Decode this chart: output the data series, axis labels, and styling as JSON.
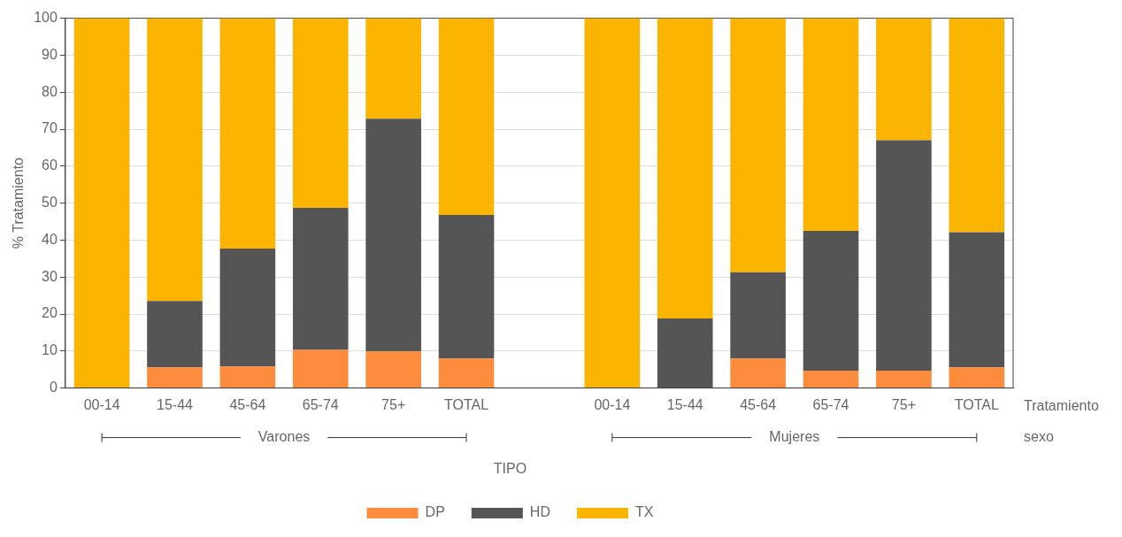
{
  "chart_data": {
    "type": "bar",
    "stacked": true,
    "ylabel": "% Tratamiento",
    "xlabel": "Tratamiento",
    "legend_title": "TIPO",
    "legend": "bottom",
    "grid": "y",
    "categories": [
      "00-14",
      "15-44",
      "45-64",
      "65-74",
      "75+",
      "TOTAL",
      null,
      "00-14",
      "15-44",
      "45-64",
      "65-74",
      "75+",
      "TOTAL"
    ],
    "annotations": [
      "Varones",
      "Mujeres",
      "sexo"
    ],
    "ylim": [
      0,
      100
    ],
    "yticks": [
      0,
      10,
      20,
      30,
      40,
      50,
      60,
      70,
      80,
      90,
      100
    ],
    "series": [
      {
        "name": "DP",
        "color": "#fd8c3c",
        "values": [
          0,
          5.6,
          5.8,
          10.3,
          9.9,
          8.0,
          null,
          0,
          0,
          8.0,
          4.7,
          4.7,
          5.6
        ]
      },
      {
        "name": "HD",
        "color": "#555555",
        "values": [
          0,
          17.9,
          31.9,
          38.4,
          62.9,
          38.8,
          null,
          0,
          18.8,
          23.3,
          37.8,
          62.3,
          36.5
        ]
      },
      {
        "name": "TX",
        "color": "#fbb400",
        "values": [
          100,
          76.5,
          62.3,
          51.3,
          27.2,
          53.2,
          null,
          100,
          81.2,
          68.7,
          57.5,
          33.0,
          57.9
        ]
      }
    ]
  }
}
